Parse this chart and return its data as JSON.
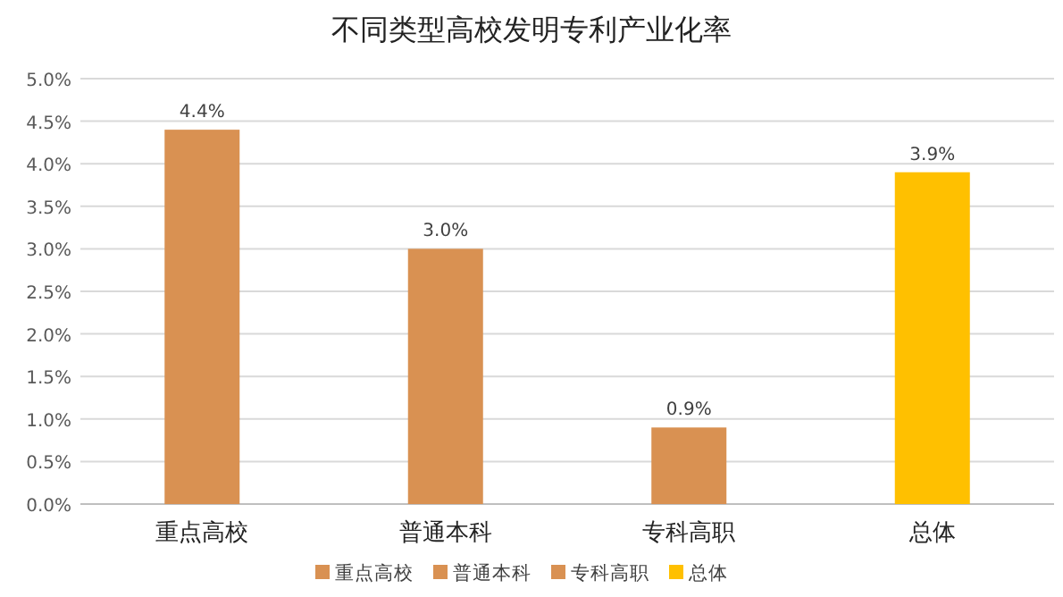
{
  "chart_data": {
    "type": "bar",
    "title": "不同类型高校发明专利产业化率",
    "categories": [
      "重点高校",
      "普通本科",
      "专科高职",
      "总体"
    ],
    "series": [
      {
        "name": "重点高校",
        "color": "#d99152",
        "values": [
          4.4,
          null,
          null,
          null
        ],
        "value_labels": [
          "4.4%",
          null,
          null,
          null
        ]
      },
      {
        "name": "普通本科",
        "color": "#d99152",
        "values": [
          null,
          3.0,
          null,
          null
        ],
        "value_labels": [
          null,
          "3.0%",
          null,
          null
        ]
      },
      {
        "name": "专科高职",
        "color": "#d99152",
        "values": [
          null,
          null,
          0.9,
          null
        ],
        "value_labels": [
          null,
          null,
          "0.9%",
          null
        ]
      },
      {
        "name": "总体",
        "color": "#ffc000",
        "values": [
          null,
          null,
          null,
          3.9
        ],
        "value_labels": [
          null,
          null,
          null,
          "3.9%"
        ]
      }
    ],
    "ylim": [
      0,
      5
    ],
    "yticks": [
      {
        "value": 0,
        "label": "0.0%"
      },
      {
        "value": 0.5,
        "label": "0.5%"
      },
      {
        "value": 1,
        "label": "1.0%"
      },
      {
        "value": 1.5,
        "label": "1.5%"
      },
      {
        "value": 2,
        "label": "2.0%"
      },
      {
        "value": 2.5,
        "label": "2.5%"
      },
      {
        "value": 3,
        "label": "3.0%"
      },
      {
        "value": 3.5,
        "label": "3.5%"
      },
      {
        "value": 4,
        "label": "4.0%"
      },
      {
        "value": 4.5,
        "label": "4.5%"
      },
      {
        "value": 5,
        "label": "5.0%"
      }
    ],
    "grid": "y",
    "legend": "bottom"
  }
}
